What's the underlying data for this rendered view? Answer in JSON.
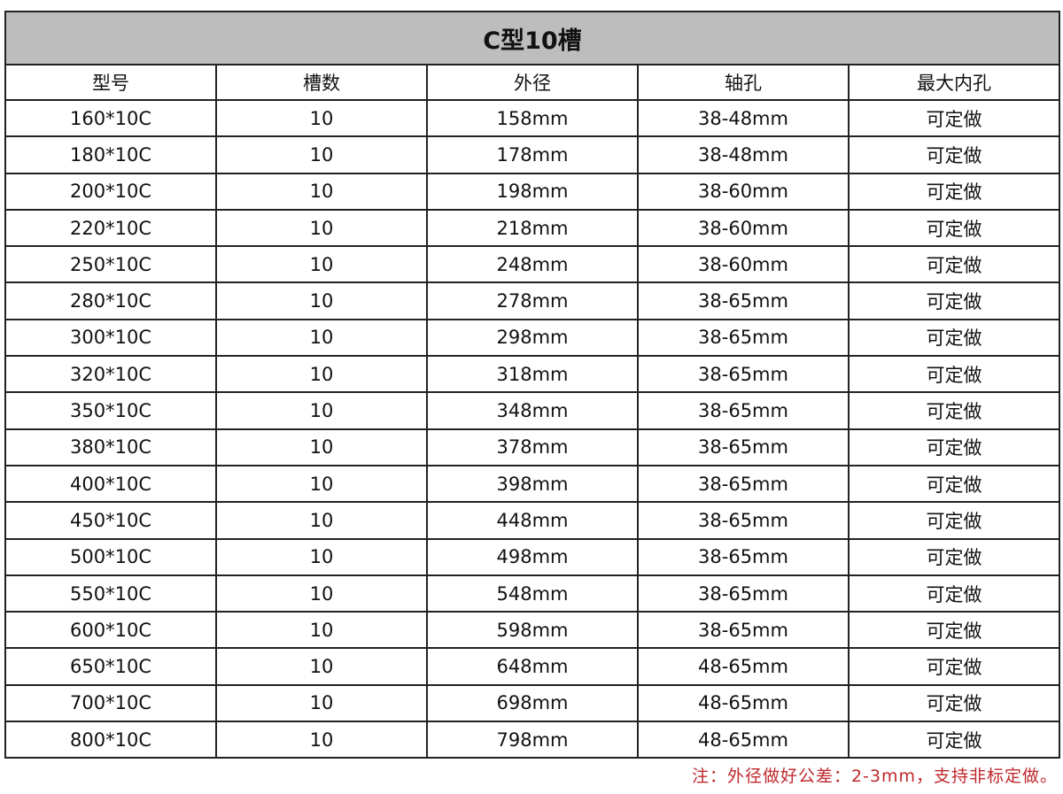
{
  "title": "C型10槽",
  "headers": [
    "型号",
    "槽数",
    "外径",
    "轴孔",
    "最大内孔"
  ],
  "rows": [
    [
      "160*10C",
      "10",
      "158mm",
      "38-48mm",
      "可定做"
    ],
    [
      "180*10C",
      "10",
      "178mm",
      "38-48mm",
      "可定做"
    ],
    [
      "200*10C",
      "10",
      "198mm",
      "38-60mm",
      "可定做"
    ],
    [
      "220*10C",
      "10",
      "218mm",
      "38-60mm",
      "可定做"
    ],
    [
      "250*10C",
      "10",
      "248mm",
      "38-60mm",
      "可定做"
    ],
    [
      "280*10C",
      "10",
      "278mm",
      "38-65mm",
      "可定做"
    ],
    [
      "300*10C",
      "10",
      "298mm",
      "38-65mm",
      "可定做"
    ],
    [
      "320*10C",
      "10",
      "318mm",
      "38-65mm",
      "可定做"
    ],
    [
      "350*10C",
      "10",
      "348mm",
      "38-65mm",
      "可定做"
    ],
    [
      "380*10C",
      "10",
      "378mm",
      "38-65mm",
      "可定做"
    ],
    [
      "400*10C",
      "10",
      "398mm",
      "38-65mm",
      "可定做"
    ],
    [
      "450*10C",
      "10",
      "448mm",
      "38-65mm",
      "可定做"
    ],
    [
      "500*10C",
      "10",
      "498mm",
      "38-65mm",
      "可定做"
    ],
    [
      "550*10C",
      "10",
      "548mm",
      "38-65mm",
      "可定做"
    ],
    [
      "600*10C",
      "10",
      "598mm",
      "38-65mm",
      "可定做"
    ],
    [
      "650*10C",
      "10",
      "648mm",
      "48-65mm",
      "可定做"
    ],
    [
      "700*10C",
      "10",
      "698mm",
      "48-65mm",
      "可定做"
    ],
    [
      "800*10C",
      "10",
      "798mm",
      "48-65mm",
      "可定做"
    ]
  ],
  "note": "注：外径做好公差：2-3mm，支持非标定做。",
  "colors": {
    "title_bg": "#bdbdbd",
    "note": "#c0282d",
    "border": "#222222"
  }
}
